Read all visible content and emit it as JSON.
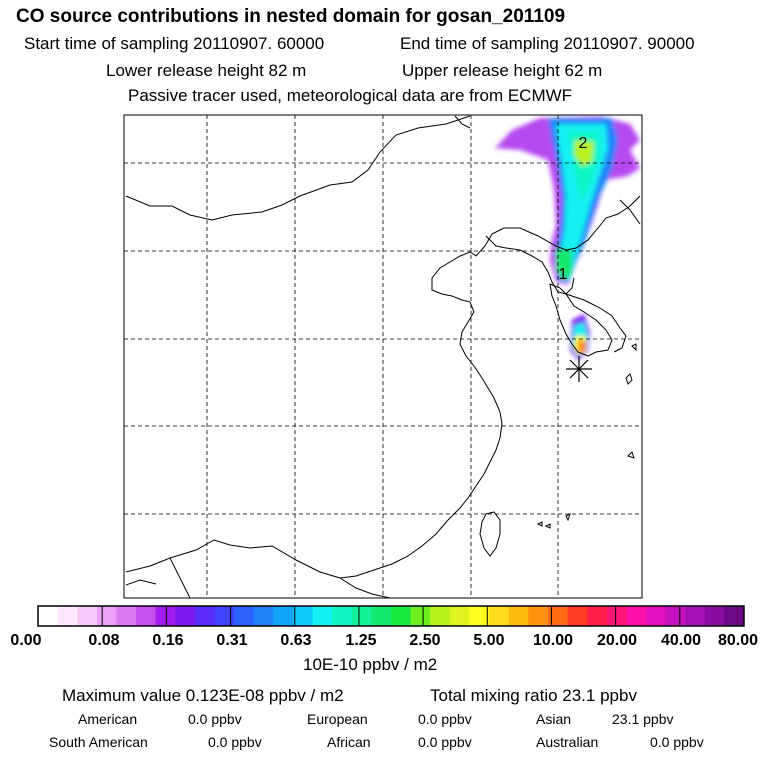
{
  "header": {
    "title": "CO  source contributions in nested domain for gosan_201109",
    "start_time": "Start time of sampling 20110907. 60000",
    "end_time": "End time of sampling 20110907. 90000",
    "lower_height": "Lower release height   82 m",
    "upper_height": "Upper release height   62 m",
    "tracer_note": "Passive tracer used, meteorological data are from ECMWF"
  },
  "map": {
    "labels": [
      "2",
      "1"
    ],
    "receptor_marker": "asterisk-icon"
  },
  "legend": {
    "ticks": [
      "0.00",
      "0.08",
      "0.16",
      "0.31",
      "0.63",
      "1.25",
      "2.50",
      "5.00",
      "10.00",
      "20.00",
      "40.00",
      "80.00"
    ],
    "unit": "10E-10 ppbv / m2",
    "colors": [
      "#ffffff",
      "#fde6ff",
      "#f8c8fb",
      "#eaa2f5",
      "#d97cf2",
      "#c450ef",
      "#a11ced",
      "#7a18ee",
      "#5a2cf7",
      "#3f44fb",
      "#2c62fb",
      "#1f82fa",
      "#12a5f8",
      "#0ec8f6",
      "#12f0f1",
      "#10f5c3",
      "#12f09a",
      "#14e86e",
      "#1ae83e",
      "#6df021",
      "#b8f21d",
      "#dff31e",
      "#fffd1f",
      "#ffdd1a",
      "#ffba12",
      "#ff9310",
      "#ff6a14",
      "#ff3d22",
      "#ff1d47",
      "#ff1576",
      "#fb10a8",
      "#e211bd",
      "#c511be",
      "#a710b6",
      "#880ca0",
      "#6a0a84"
    ]
  },
  "summary": {
    "max_label": "Maximum value  0.123E-08 ppbv / m2",
    "total_label": "Total mixing ratio      23.1 ppbv",
    "regions": {
      "american_label": "American",
      "american_value": "0.0 ppbv",
      "european_label": "European",
      "european_value": "0.0 ppbv",
      "asian_label": "Asian",
      "asian_value": "23.1 ppbv",
      "south_american_label": "South American",
      "south_american_value": "0.0 ppbv",
      "african_label": "African",
      "african_value": "0.0 ppbv",
      "australian_label": "Australian",
      "australian_value": "0.0 ppbv"
    }
  }
}
